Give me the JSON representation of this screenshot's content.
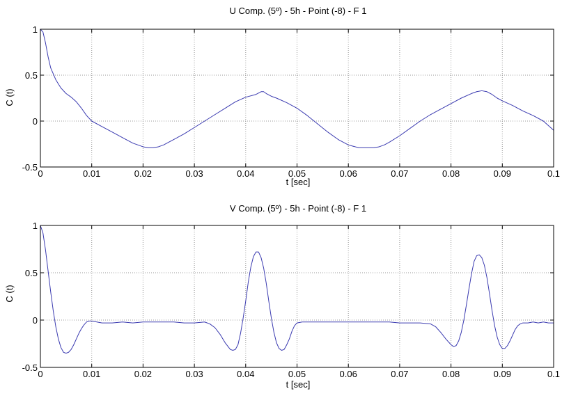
{
  "colors": {
    "line": "#3a3ab0",
    "axes": "#000000",
    "grid": "#9a9a9a",
    "background": "#ffffff"
  },
  "chart_data": [
    {
      "type": "line",
      "title": "U Comp. (5º) - 5h - Point (-8) - F 1",
      "xlabel": "t [sec]",
      "ylabel": "C (t)",
      "xlim": [
        0,
        0.1
      ],
      "ylim": [
        -0.5,
        1
      ],
      "grid": true,
      "legend": "none",
      "xticks": [
        0,
        0.01,
        0.02,
        0.03,
        0.04,
        0.05,
        0.06,
        0.07,
        0.08,
        0.09,
        0.1
      ],
      "xtick_labels": [
        "0",
        "0.01",
        "0.02",
        "0.03",
        "0.04",
        "0.05",
        "0.06",
        "0.07",
        "0.08",
        "0.09",
        "0.1"
      ],
      "yticks": [
        -0.5,
        0,
        0.5,
        1
      ],
      "ytick_labels": [
        "-0.5",
        "0",
        "0.5",
        "1"
      ],
      "series": [
        {
          "color": "#3a3ab0",
          "x": [
            0,
            0.0005,
            0.001,
            0.0015,
            0.002,
            0.003,
            0.004,
            0.005,
            0.006,
            0.007,
            0.008,
            0.009,
            0.01,
            0.012,
            0.014,
            0.016,
            0.018,
            0.02,
            0.021,
            0.022,
            0.023,
            0.024,
            0.026,
            0.028,
            0.03,
            0.032,
            0.034,
            0.036,
            0.038,
            0.04,
            0.042,
            0.043,
            0.0435,
            0.044,
            0.045,
            0.046,
            0.048,
            0.05,
            0.052,
            0.054,
            0.056,
            0.058,
            0.06,
            0.062,
            0.064,
            0.065,
            0.066,
            0.067,
            0.068,
            0.07,
            0.072,
            0.074,
            0.076,
            0.078,
            0.08,
            0.082,
            0.084,
            0.085,
            0.086,
            0.087,
            0.088,
            0.089,
            0.09,
            0.092,
            0.094,
            0.096,
            0.098,
            0.1
          ],
          "y": [
            1.0,
            0.97,
            0.85,
            0.7,
            0.58,
            0.45,
            0.36,
            0.3,
            0.26,
            0.21,
            0.14,
            0.06,
            0.0,
            -0.06,
            -0.12,
            -0.18,
            -0.24,
            -0.28,
            -0.29,
            -0.29,
            -0.28,
            -0.26,
            -0.2,
            -0.14,
            -0.07,
            0.0,
            0.07,
            0.14,
            0.21,
            0.26,
            0.29,
            0.32,
            0.32,
            0.3,
            0.27,
            0.25,
            0.2,
            0.14,
            0.06,
            -0.03,
            -0.12,
            -0.2,
            -0.26,
            -0.29,
            -0.29,
            -0.29,
            -0.28,
            -0.26,
            -0.23,
            -0.16,
            -0.08,
            0.0,
            0.07,
            0.13,
            0.19,
            0.25,
            0.3,
            0.32,
            0.33,
            0.32,
            0.29,
            0.25,
            0.22,
            0.17,
            0.11,
            0.06,
            0.0,
            -0.1
          ]
        }
      ]
    },
    {
      "type": "line",
      "title": "V Comp. (5º) - 5h - Point (-8) - F 1",
      "xlabel": "t [sec]",
      "ylabel": "C (t)",
      "xlim": [
        0,
        0.1
      ],
      "ylim": [
        -0.5,
        1
      ],
      "grid": true,
      "legend": "none",
      "xticks": [
        0,
        0.01,
        0.02,
        0.03,
        0.04,
        0.05,
        0.06,
        0.07,
        0.08,
        0.09,
        0.1
      ],
      "xtick_labels": [
        "0",
        "0.01",
        "0.02",
        "0.03",
        "0.04",
        "0.05",
        "0.06",
        "0.07",
        "0.08",
        "0.09",
        "0.1"
      ],
      "yticks": [
        -0.5,
        0,
        0.5,
        1
      ],
      "ytick_labels": [
        "-0.5",
        "0",
        "0.5",
        "1"
      ],
      "series": [
        {
          "color": "#3a3ab0",
          "x": [
            0,
            0.0005,
            0.001,
            0.0015,
            0.002,
            0.0025,
            0.003,
            0.0035,
            0.004,
            0.0045,
            0.005,
            0.0055,
            0.006,
            0.0065,
            0.007,
            0.0075,
            0.008,
            0.0085,
            0.009,
            0.0095,
            0.01,
            0.011,
            0.012,
            0.014,
            0.016,
            0.018,
            0.02,
            0.022,
            0.024,
            0.026,
            0.028,
            0.03,
            0.032,
            0.033,
            0.034,
            0.035,
            0.036,
            0.037,
            0.0375,
            0.038,
            0.0385,
            0.039,
            0.0395,
            0.04,
            0.0405,
            0.041,
            0.0415,
            0.042,
            0.0425,
            0.043,
            0.0435,
            0.044,
            0.0445,
            0.045,
            0.0455,
            0.046,
            0.0465,
            0.047,
            0.0475,
            0.048,
            0.0485,
            0.049,
            0.0495,
            0.05,
            0.051,
            0.052,
            0.054,
            0.056,
            0.058,
            0.06,
            0.062,
            0.064,
            0.066,
            0.068,
            0.07,
            0.072,
            0.074,
            0.076,
            0.077,
            0.078,
            0.079,
            0.08,
            0.0805,
            0.081,
            0.0815,
            0.082,
            0.0825,
            0.083,
            0.0835,
            0.084,
            0.0845,
            0.085,
            0.0855,
            0.086,
            0.0865,
            0.087,
            0.0875,
            0.088,
            0.0885,
            0.089,
            0.0895,
            0.09,
            0.0905,
            0.091,
            0.0915,
            0.092,
            0.0925,
            0.093,
            0.0935,
            0.094,
            0.095,
            0.096,
            0.097,
            0.098,
            0.099,
            0.1
          ],
          "y": [
            1.0,
            0.92,
            0.74,
            0.52,
            0.3,
            0.1,
            -0.07,
            -0.2,
            -0.29,
            -0.34,
            -0.35,
            -0.34,
            -0.31,
            -0.26,
            -0.2,
            -0.14,
            -0.09,
            -0.05,
            -0.02,
            -0.01,
            -0.01,
            -0.02,
            -0.03,
            -0.03,
            -0.02,
            -0.03,
            -0.02,
            -0.02,
            -0.02,
            -0.02,
            -0.03,
            -0.03,
            -0.02,
            -0.04,
            -0.08,
            -0.15,
            -0.24,
            -0.31,
            -0.32,
            -0.31,
            -0.26,
            -0.14,
            0.02,
            0.2,
            0.4,
            0.56,
            0.67,
            0.72,
            0.72,
            0.66,
            0.55,
            0.39,
            0.2,
            0.02,
            -0.13,
            -0.24,
            -0.3,
            -0.32,
            -0.31,
            -0.26,
            -0.2,
            -0.12,
            -0.06,
            -0.03,
            -0.02,
            -0.02,
            -0.02,
            -0.02,
            -0.02,
            -0.02,
            -0.02,
            -0.02,
            -0.02,
            -0.02,
            -0.03,
            -0.03,
            -0.03,
            -0.04,
            -0.07,
            -0.13,
            -0.2,
            -0.26,
            -0.28,
            -0.27,
            -0.22,
            -0.13,
            0.0,
            0.16,
            0.33,
            0.49,
            0.62,
            0.68,
            0.69,
            0.66,
            0.58,
            0.45,
            0.28,
            0.1,
            -0.06,
            -0.18,
            -0.26,
            -0.3,
            -0.3,
            -0.27,
            -0.22,
            -0.16,
            -0.1,
            -0.06,
            -0.04,
            -0.03,
            -0.03,
            -0.02,
            -0.03,
            -0.02,
            -0.03,
            -0.03
          ]
        }
      ]
    }
  ]
}
